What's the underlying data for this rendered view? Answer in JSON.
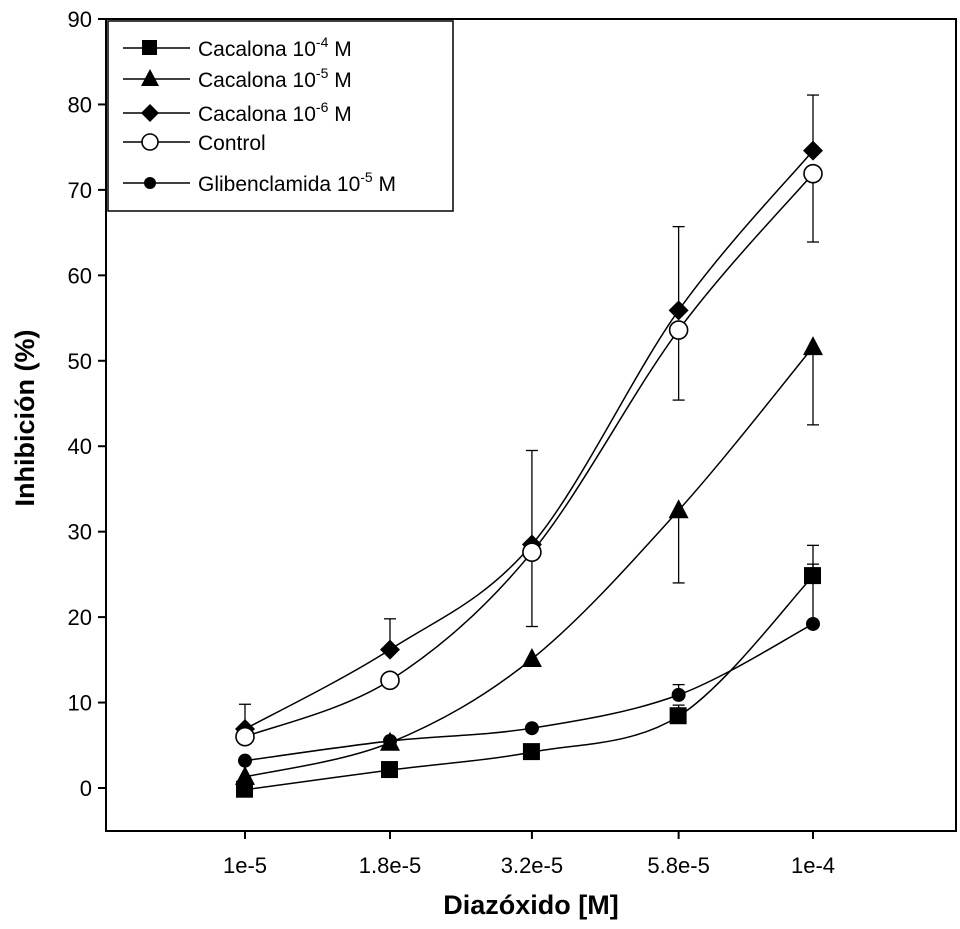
{
  "chart_data": {
    "type": "line",
    "xlabel": "Diazóxido [M]",
    "ylabel": "Inhibición (%)",
    "ylim": [
      -5,
      90
    ],
    "y_ticks": [
      0,
      10,
      20,
      30,
      40,
      50,
      60,
      70,
      80,
      90
    ],
    "x_tick_labels": [
      "1e-5",
      "1.8e-5",
      "3.2e-5",
      "5.8e-5",
      "1e-4"
    ],
    "x": [
      1e-05,
      1.8e-05,
      3.2e-05,
      5.8e-05,
      0.0001
    ],
    "x_scale": "log",
    "grid": false,
    "legend_position": "top-left",
    "series": [
      {
        "name": "Cacalona 10-4 M",
        "legend": {
          "base": "Cacalona 10",
          "sup": "-4",
          "unit": " M"
        },
        "marker": "square",
        "values": [
          -0.2,
          2.1,
          4.2,
          8.4,
          24.8
        ],
        "error": [
          0,
          0,
          0,
          1.3,
          3.6
        ]
      },
      {
        "name": "Cacalona 10-5 M",
        "legend": {
          "base": "Cacalona 10",
          "sup": "-5",
          "unit": " M"
        },
        "marker": "triangle",
        "values": [
          1.3,
          5.3,
          15.1,
          32.5,
          51.6
        ],
        "error": [
          0,
          0,
          0,
          8.5,
          9.1
        ]
      },
      {
        "name": "Cacalona 10-6 M",
        "legend": {
          "base": "Cacalona 10",
          "sup": "-6",
          "unit": " M"
        },
        "marker": "diamond",
        "values": [
          6.9,
          16.2,
          28.5,
          55.9,
          74.6
        ],
        "error": [
          2.9,
          3.6,
          11.0,
          9.8,
          6.5
        ]
      },
      {
        "name": "Control",
        "legend": {
          "base": "Control",
          "sup": "",
          "unit": ""
        },
        "marker": "open-circle",
        "values": [
          6.0,
          12.6,
          27.6,
          53.6,
          71.9
        ],
        "error": [
          0,
          0,
          8.7,
          8.2,
          8.0
        ]
      },
      {
        "name": "Glibenclamida 10-5 M",
        "legend": {
          "base": "Glibenclamida 10",
          "sup": "-5",
          "unit": " M"
        },
        "marker": "circle",
        "values": [
          3.2,
          5.5,
          7.0,
          10.9,
          19.2
        ],
        "error": [
          0,
          0,
          0,
          1.2,
          7.0
        ]
      }
    ]
  }
}
